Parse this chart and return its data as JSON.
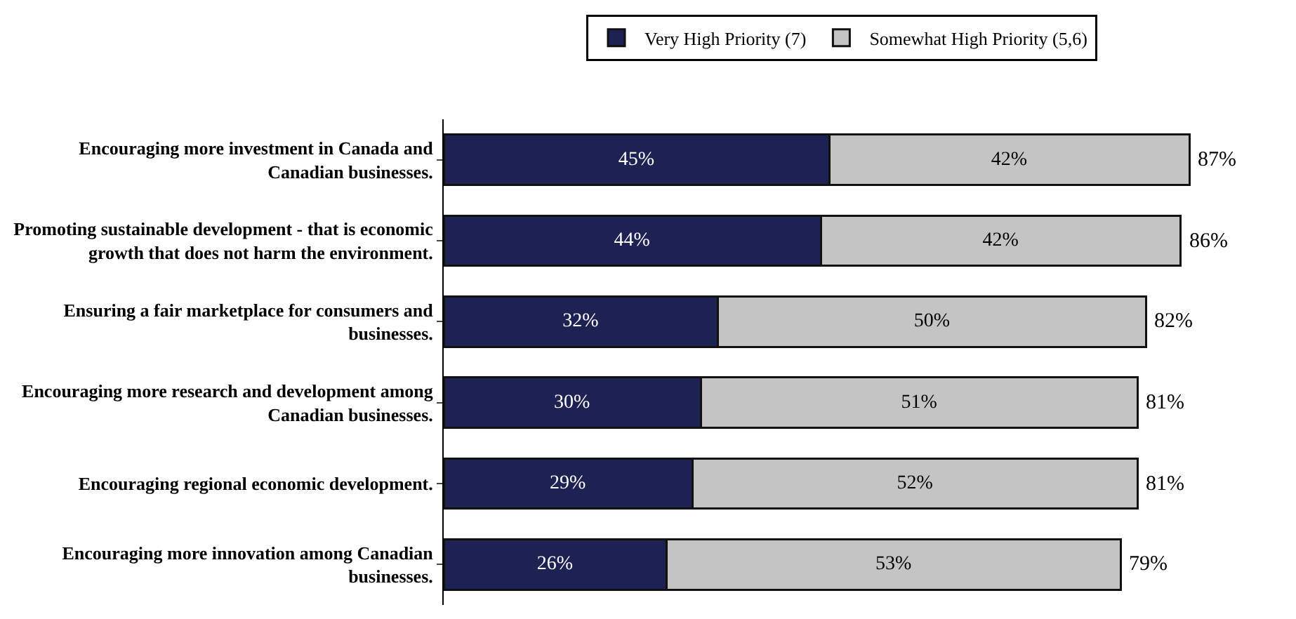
{
  "chart_data": {
    "type": "bar",
    "orientation": "horizontal",
    "stacked": true,
    "legend": "top",
    "categories": [
      "Encouraging more investment in Canada and\nCanadian businesses.",
      "Promoting sustainable development - that is economic\ngrowth that does not harm the environment.",
      "Ensuring a fair marketplace for consumers and\nbusinesses.",
      "Encouraging more research and development among\nCanadian businesses.",
      "Encouraging regional economic development.",
      "Encouraging more innovation among Canadian\nbusinesses."
    ],
    "series": [
      {
        "name": "Very High Priority (7)",
        "color": "#1e2252",
        "values": [
          45,
          44,
          32,
          30,
          29,
          26
        ],
        "value_labels": [
          "45%",
          "44%",
          "32%",
          "30%",
          "29%",
          "26%"
        ]
      },
      {
        "name": "Somewhat High Priority (5,6)",
        "color": "#c4c4c4",
        "values": [
          42,
          42,
          50,
          51,
          52,
          53
        ],
        "value_labels": [
          "42%",
          "42%",
          "50%",
          "51%",
          "52%",
          "53%"
        ]
      }
    ],
    "totals": [
      "87%",
      "86%",
      "82%",
      "81%",
      "81%",
      "79%"
    ]
  }
}
